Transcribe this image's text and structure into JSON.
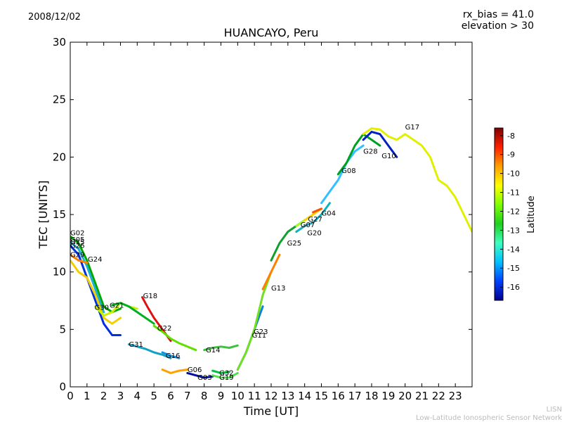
{
  "header": {
    "date": "2008/12/02",
    "rx_bias": "rx_bias = 41.0",
    "elevation": "elevation > 30"
  },
  "footer": {
    "network_short": "LISN",
    "network_full": "Low-Latitude Ionospheric Sensor Network"
  },
  "colorbar": {
    "label": "Latitude",
    "ticks": [
      "-8",
      "-9",
      "-10",
      "-11",
      "-12",
      "-13",
      "-14",
      "-15",
      "-16"
    ],
    "range": [
      -16.7,
      -7.6
    ],
    "colors": [
      "#00008f",
      "#0040ff",
      "#00c0ff",
      "#40ffbf",
      "#20d020",
      "#80ff00",
      "#ffff00",
      "#ffa000",
      "#ff2000",
      "#800000"
    ]
  },
  "chart_data": {
    "type": "scatter",
    "title": "HUANCAYO, Peru",
    "xlabel": "Time [UT]",
    "ylabel": "TEC [UNITS]",
    "xlim": [
      0,
      24
    ],
    "ylim": [
      0,
      30
    ],
    "xticks": [
      0,
      1,
      2,
      3,
      4,
      5,
      6,
      7,
      8,
      9,
      10,
      11,
      12,
      13,
      14,
      15,
      16,
      17,
      18,
      19,
      20,
      21,
      22,
      23
    ],
    "yticks": [
      0,
      5,
      10,
      15,
      20,
      25,
      30
    ],
    "series": [
      {
        "name": "G02",
        "color": "#00a800",
        "x": [
          0,
          0.5,
          1,
          1.5,
          2,
          2.5,
          3
        ],
        "y": [
          13.1,
          12.5,
          11,
          9,
          7,
          6.5,
          6.8
        ]
      },
      {
        "name": "G05",
        "color": "#20b0d0",
        "x": [
          0,
          0.5,
          1,
          1.5,
          2
        ],
        "y": [
          12.6,
          12,
          10.5,
          8.5,
          6.5
        ]
      },
      {
        "name": "G26",
        "color": "#0030e0",
        "x": [
          0,
          0.5,
          1,
          1.5,
          2,
          2.5,
          3
        ],
        "y": [
          12.3,
          11.5,
          9.5,
          7.5,
          5.5,
          4.5,
          4.5
        ]
      },
      {
        "name": "G29",
        "color": "#ff8000",
        "x": [
          0,
          0.5,
          1
        ],
        "y": [
          11.5,
          11,
          10.8
        ]
      },
      {
        "name": "G24",
        "color": "#f0d000",
        "x": [
          0,
          0.5,
          1,
          1.5,
          2,
          2.5,
          3
        ],
        "y": [
          11,
          10,
          9.5,
          8,
          6,
          5.5,
          6
        ]
      },
      {
        "name": "G30",
        "color": "#c8f000",
        "x": [
          1.5,
          2,
          2.5,
          3,
          3.5,
          4
        ],
        "y": [
          7,
          6.2,
          6.5,
          7.3,
          7,
          6.8
        ]
      },
      {
        "name": "G21",
        "color": "#00b020",
        "x": [
          2.5,
          3,
          3.5,
          4,
          4.5,
          5
        ],
        "y": [
          7.1,
          7.3,
          7,
          6.5,
          6,
          5.5
        ]
      },
      {
        "name": "G18",
        "color": "#e01010",
        "x": [
          4.3,
          4.6,
          5,
          5.5,
          6
        ],
        "y": [
          7.8,
          7,
          6,
          5,
          4
        ]
      },
      {
        "name": "G31",
        "color": "#10a0c0",
        "x": [
          3.5,
          4,
          4.5,
          5,
          5.5,
          6
        ],
        "y": [
          3.7,
          3.5,
          3.3,
          3,
          2.8,
          2.5
        ]
      },
      {
        "name": "G22",
        "color": "#60e000",
        "x": [
          5,
          5.5,
          6,
          6.5,
          7,
          7.5
        ],
        "y": [
          5.3,
          4.8,
          4.2,
          3.8,
          3.5,
          3.2
        ]
      },
      {
        "name": "G16",
        "color": "#1090e0",
        "x": [
          5.5,
          6,
          6.5
        ],
        "y": [
          3,
          2.7,
          2.5
        ]
      },
      {
        "name": "G06",
        "color": "#ffa000",
        "x": [
          5.5,
          6,
          6.5,
          7
        ],
        "y": [
          1.5,
          1.2,
          1.4,
          1.5
        ]
      },
      {
        "name": "G03",
        "color": "#0010a0",
        "x": [
          7,
          7.5,
          8,
          8.5
        ],
        "y": [
          1.2,
          1,
          0.8,
          0.9
        ]
      },
      {
        "name": "G14",
        "color": "#40c040",
        "x": [
          8,
          8.5,
          9,
          9.5,
          10
        ],
        "y": [
          3.2,
          3.4,
          3.5,
          3.4,
          3.6
        ]
      },
      {
        "name": "G32",
        "color": "#00c040",
        "x": [
          8.5,
          9,
          9.5
        ],
        "y": [
          1.4,
          1.2,
          1.3
        ]
      },
      {
        "name": "G19",
        "color": "#50e050",
        "x": [
          8.5,
          9,
          9.5,
          10
        ],
        "y": [
          1,
          0.8,
          0.8,
          1.2
        ]
      },
      {
        "name": "G23",
        "color": "#1080d0",
        "x": [
          10,
          10.5,
          11,
          11.5
        ],
        "y": [
          1.5,
          3,
          5,
          7
        ]
      },
      {
        "name": "G11",
        "color": "#70e020",
        "x": [
          10,
          10.5,
          11,
          11.5,
          12
        ],
        "y": [
          1.5,
          3,
          5,
          8,
          10
        ]
      },
      {
        "name": "G13",
        "color": "#ff8000",
        "x": [
          11.5,
          12,
          12.5
        ],
        "y": [
          8.5,
          10,
          11.5
        ]
      },
      {
        "name": "G25",
        "color": "#10a030",
        "x": [
          12,
          12.5,
          13,
          13.5,
          14
        ],
        "y": [
          11,
          12.5,
          13.5,
          14,
          14.5
        ]
      },
      {
        "name": "G20",
        "color": "#10b0c0",
        "x": [
          13.5,
          14,
          14.5,
          15,
          15.5
        ],
        "y": [
          13.5,
          14,
          14.3,
          15,
          16
        ]
      },
      {
        "name": "G07",
        "color": "#a0ff20",
        "x": [
          13.5,
          14,
          14.5
        ],
        "y": [
          14,
          14.5,
          15
        ]
      },
      {
        "name": "G27",
        "color": "#ffd000",
        "x": [
          14,
          14.5,
          15
        ],
        "y": [
          14.5,
          15,
          15.5
        ]
      },
      {
        "name": "G04",
        "color": "#ff5000",
        "x": [
          14.5,
          15
        ],
        "y": [
          15.2,
          15.5
        ]
      },
      {
        "name": "G08",
        "color": "#30c0ff",
        "x": [
          15,
          15.5,
          16,
          16.5,
          17,
          17.5
        ],
        "y": [
          16,
          17,
          18,
          19.5,
          20.5,
          21
        ]
      },
      {
        "name": "G28",
        "color": "#00a020",
        "x": [
          16,
          16.5,
          17,
          17.5,
          18,
          18.5
        ],
        "y": [
          18.5,
          19.5,
          21,
          22,
          21.5,
          21
        ]
      },
      {
        "name": "G10",
        "color": "#0020c0",
        "x": [
          17.5,
          18,
          18.5,
          19,
          19.5
        ],
        "y": [
          21.5,
          22.2,
          22,
          21,
          20
        ]
      },
      {
        "name": "G17",
        "color": "#e0f000",
        "x": [
          17.5,
          18,
          18.5,
          19,
          19.5,
          20,
          20.5,
          21,
          21.5,
          22,
          22.5,
          23,
          24
        ],
        "y": [
          22,
          22.5,
          22.4,
          21.8,
          21.5,
          22,
          21.5,
          21,
          20,
          18,
          17.5,
          16.5,
          13.5
        ]
      }
    ],
    "labels": [
      {
        "text": "G02",
        "x": 0.0,
        "y": 13.2
      },
      {
        "text": "G05",
        "x": 0.0,
        "y": 12.6
      },
      {
        "text": "G15",
        "x": 0.0,
        "y": 12.4
      },
      {
        "text": "G26",
        "x": 0.0,
        "y": 12.1
      },
      {
        "text": "G29",
        "x": 0.0,
        "y": 11.3
      },
      {
        "text": "G24",
        "x": 1.05,
        "y": 10.9
      },
      {
        "text": "G30",
        "x": 1.45,
        "y": 6.7
      },
      {
        "text": "G21",
        "x": 2.35,
        "y": 6.9
      },
      {
        "text": "G18",
        "x": 4.35,
        "y": 7.7
      },
      {
        "text": "G31",
        "x": 3.5,
        "y": 3.5
      },
      {
        "text": "G22",
        "x": 5.2,
        "y": 4.9
      },
      {
        "text": "G16",
        "x": 5.7,
        "y": 2.5
      },
      {
        "text": "G06",
        "x": 7.0,
        "y": 1.3
      },
      {
        "text": "G03",
        "x": 7.6,
        "y": 0.6
      },
      {
        "text": "G14",
        "x": 8.1,
        "y": 3.0
      },
      {
        "text": "G32",
        "x": 8.9,
        "y": 1.0
      },
      {
        "text": "G19",
        "x": 8.9,
        "y": 0.6
      },
      {
        "text": "G23",
        "x": 10.95,
        "y": 4.6
      },
      {
        "text": "G11",
        "x": 10.85,
        "y": 4.3
      },
      {
        "text": "G13",
        "x": 12.0,
        "y": 8.4
      },
      {
        "text": "G25",
        "x": 12.95,
        "y": 12.3
      },
      {
        "text": "G07",
        "x": 13.75,
        "y": 13.9
      },
      {
        "text": "G27",
        "x": 14.2,
        "y": 14.4
      },
      {
        "text": "G20",
        "x": 14.15,
        "y": 13.2
      },
      {
        "text": "G04",
        "x": 15.0,
        "y": 14.9
      },
      {
        "text": "G08",
        "x": 16.2,
        "y": 18.6
      },
      {
        "text": "G28",
        "x": 17.5,
        "y": 20.3
      },
      {
        "text": "G10",
        "x": 18.6,
        "y": 19.9
      },
      {
        "text": "G17",
        "x": 20.0,
        "y": 22.4
      }
    ]
  }
}
